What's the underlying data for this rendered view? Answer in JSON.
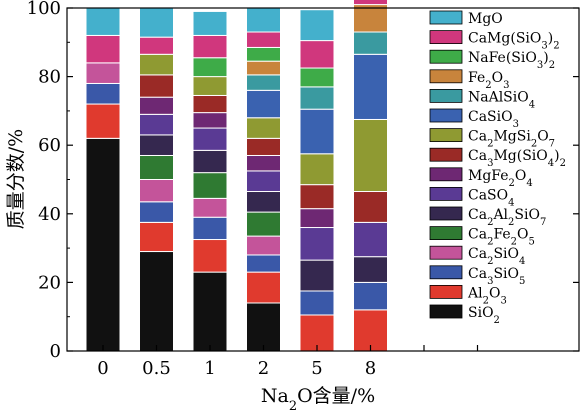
{
  "chart_data": {
    "type": "bar",
    "stacked": true,
    "xlabel": "Na₂O含量/%",
    "ylabel": "质量分数/%",
    "ylim": [
      0,
      100
    ],
    "yticks": [
      0,
      20,
      40,
      60,
      80,
      100
    ],
    "categories": [
      "0",
      "0.5",
      "1",
      "2",
      "5",
      "8"
    ],
    "legend_position": "right",
    "grid": false,
    "series": [
      {
        "name": "SiO2",
        "label_html": "SiO<tspan baseline-shift=\"sub\">2</tspan>",
        "color": "#111111",
        "values": [
          62,
          29,
          23,
          14,
          0,
          0
        ]
      },
      {
        "name": "Al2O3",
        "label_html": "Al<tspan baseline-shift=\"sub\">2</tspan>O<tspan baseline-shift=\"sub\">3</tspan>",
        "color": "#e03a2e",
        "values": [
          10,
          8.5,
          9.5,
          9,
          10.5,
          12
        ]
      },
      {
        "name": "Ca3SiO5",
        "label_html": "Ca<tspan baseline-shift=\"sub\">3</tspan>SiO<tspan baseline-shift=\"sub\">5</tspan>",
        "color": "#3a58a8",
        "values": [
          6,
          6,
          6.5,
          5,
          7,
          8
        ]
      },
      {
        "name": "Ca2SiO4",
        "label_html": "Ca<tspan baseline-shift=\"sub\">2</tspan>SiO<tspan baseline-shift=\"sub\">4</tspan>",
        "color": "#c4549a",
        "values": [
          6,
          6.5,
          5.5,
          5.5,
          0,
          0
        ]
      },
      {
        "name": "Ca2Fe2O5",
        "label_html": "Ca<tspan baseline-shift=\"sub\">2</tspan>Fe<tspan baseline-shift=\"sub\">2</tspan>O<tspan baseline-shift=\"sub\">5</tspan>",
        "color": "#2f7a32",
        "values": [
          0,
          7,
          7.5,
          7,
          0,
          0
        ]
      },
      {
        "name": "Ca2Al2SiO7",
        "label_html": "Ca<tspan baseline-shift=\"sub\">2</tspan>Al<tspan baseline-shift=\"sub\">2</tspan>SiO<tspan baseline-shift=\"sub\">7</tspan>",
        "color": "#35284f",
        "values": [
          0,
          6,
          6.5,
          6,
          9,
          7.5
        ]
      },
      {
        "name": "CaSO4",
        "label_html": "CaSO<tspan baseline-shift=\"sub\">4</tspan>",
        "color": "#5a3a94",
        "values": [
          0,
          6,
          6.5,
          6,
          9.5,
          10
        ]
      },
      {
        "name": "MgFe2O4",
        "label_html": "MgFe<tspan baseline-shift=\"sub\">2</tspan>O<tspan baseline-shift=\"sub\">4</tspan>",
        "color": "#6e2873",
        "values": [
          0,
          5,
          4.5,
          4.5,
          5.5,
          0
        ]
      },
      {
        "name": "Ca3Mg(SiO4)2",
        "label_html": "Ca<tspan baseline-shift=\"sub\">3</tspan>Mg(SiO<tspan baseline-shift=\"sub\">4</tspan>)<tspan baseline-shift=\"sub\">2</tspan>",
        "color": "#9a2a26",
        "values": [
          0,
          6.5,
          5,
          5,
          7,
          9
        ]
      },
      {
        "name": "Ca2MgSi2O7",
        "label_html": "Ca<tspan baseline-shift=\"sub\">2</tspan>MgSi<tspan baseline-shift=\"sub\">2</tspan>O<tspan baseline-shift=\"sub\">7</tspan>",
        "color": "#8f9a32",
        "values": [
          0,
          6,
          5.5,
          6,
          9,
          21
        ]
      },
      {
        "name": "CaSiO3",
        "label_html": "CaSiO<tspan baseline-shift=\"sub\">3</tspan>",
        "color": "#3a62b0",
        "values": [
          0,
          0,
          0,
          8,
          13,
          19
        ]
      },
      {
        "name": "NaAlSiO4",
        "label_html": "NaAlSiO<tspan baseline-shift=\"sub\">4</tspan>",
        "color": "#3a9aa0",
        "values": [
          0,
          0,
          0,
          4.5,
          6.5,
          6.5
        ]
      },
      {
        "name": "Fe2O3",
        "label_html": "Fe<tspan baseline-shift=\"sub\">2</tspan>O<tspan baseline-shift=\"sub\">3</tspan>",
        "color": "#c8843c",
        "values": [
          0,
          0,
          0,
          4,
          0,
          8
        ]
      },
      {
        "name": "NaFe(SiO3)2",
        "label_html": "NaFe(SiO<tspan baseline-shift=\"sub\">3</tspan>)<tspan baseline-shift=\"sub\">2</tspan>",
        "color": "#3eab48",
        "values": [
          0,
          0,
          5.5,
          4,
          5.5,
          0
        ]
      },
      {
        "name": "CaMg(SiO3)2",
        "label_html": "CaMg(SiO<tspan baseline-shift=\"sub\">3</tspan>)<tspan baseline-shift=\"sub\">2</tspan>",
        "color": "#d0377d",
        "values": [
          8,
          5,
          6.5,
          4.5,
          8,
          6.5
        ]
      },
      {
        "name": "MgO",
        "label_html": "MgO",
        "color": "#44b0cc",
        "values": [
          8,
          8.5,
          7,
          7,
          9,
          0
        ]
      }
    ]
  }
}
